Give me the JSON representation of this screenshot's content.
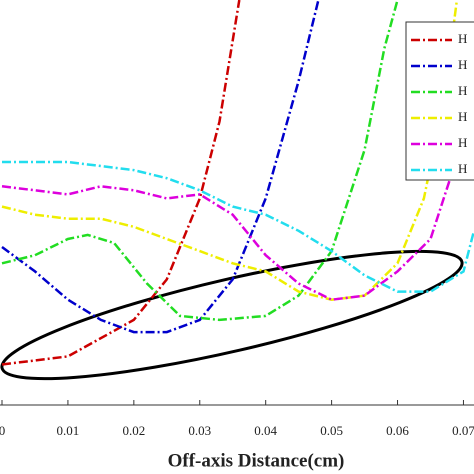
{
  "chart_data": {
    "type": "line",
    "x_label": "Off-axis Distance(cm)",
    "xlim": [
      0,
      0.0716
    ],
    "xticks": [
      0,
      0.01,
      0.02,
      0.03,
      0.04,
      0.05,
      0.06,
      0.07
    ],
    "ylim": [
      0,
      1
    ],
    "series": [
      {
        "name": "H",
        "color": "#cc0000",
        "x": [
          0,
          0.01,
          0.02,
          0.025,
          0.03,
          0.033,
          0.035,
          0.036
        ],
        "values": [
          0.1,
          0.12,
          0.21,
          0.31,
          0.51,
          0.7,
          0.9,
          1.0
        ]
      },
      {
        "name": "H",
        "color": "#0000cc",
        "x": [
          0,
          0.005,
          0.01,
          0.015,
          0.02,
          0.025,
          0.03,
          0.035,
          0.04,
          0.045,
          0.048
        ],
        "values": [
          0.39,
          0.33,
          0.26,
          0.21,
          0.18,
          0.18,
          0.21,
          0.31,
          0.51,
          0.8,
          1.0
        ]
      },
      {
        "name": "H",
        "color": "#22dd22",
        "x": [
          0,
          0.005,
          0.01,
          0.013,
          0.017,
          0.022,
          0.027,
          0.033,
          0.04,
          0.045,
          0.05,
          0.055,
          0.058,
          0.06
        ],
        "values": [
          0.35,
          0.37,
          0.41,
          0.42,
          0.4,
          0.3,
          0.22,
          0.21,
          0.22,
          0.27,
          0.38,
          0.63,
          0.88,
          1.0
        ]
      },
      {
        "name": "H",
        "color": "#eeee00",
        "x": [
          0,
          0.005,
          0.01,
          0.015,
          0.02,
          0.025,
          0.03,
          0.035,
          0.04,
          0.045,
          0.05,
          0.055,
          0.06,
          0.064,
          0.067,
          0.069
        ],
        "values": [
          0.49,
          0.47,
          0.46,
          0.46,
          0.44,
          0.41,
          0.38,
          0.35,
          0.33,
          0.28,
          0.26,
          0.27,
          0.35,
          0.51,
          0.75,
          1.0
        ]
      },
      {
        "name": "H",
        "color": "#dd00dd",
        "x": [
          0,
          0.005,
          0.01,
          0.015,
          0.02,
          0.025,
          0.03,
          0.035,
          0.04,
          0.045,
          0.05,
          0.055,
          0.06,
          0.065,
          0.068,
          0.071
        ],
        "values": [
          0.54,
          0.53,
          0.52,
          0.54,
          0.53,
          0.51,
          0.52,
          0.47,
          0.37,
          0.3,
          0.26,
          0.27,
          0.33,
          0.41,
          0.56,
          0.75
        ]
      },
      {
        "name": "H",
        "color": "#22ddee",
        "x": [
          0,
          0.01,
          0.02,
          0.025,
          0.03,
          0.035,
          0.04,
          0.045,
          0.05,
          0.055,
          0.06,
          0.065,
          0.07,
          0.0716
        ],
        "values": [
          0.6,
          0.6,
          0.58,
          0.56,
          0.53,
          0.49,
          0.47,
          0.43,
          0.38,
          0.32,
          0.28,
          0.28,
          0.33,
          0.43
        ]
      }
    ]
  }
}
